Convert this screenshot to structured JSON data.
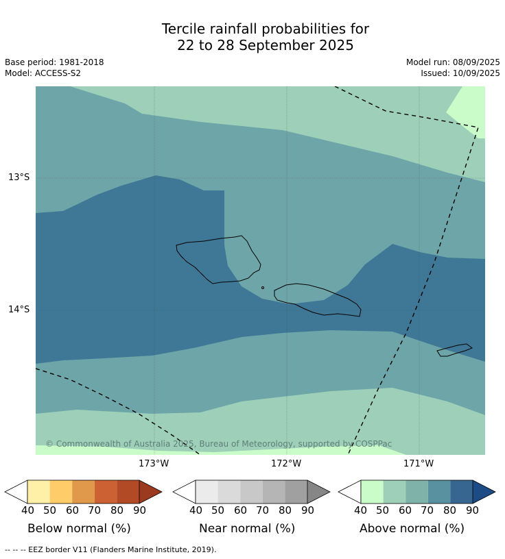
{
  "title_line1": "Tercile rainfall probabilities for",
  "title_line2": "22 to 28 September 2025",
  "base_period": "Base period: 1981-2018",
  "model": "Model: ACCESS-S2",
  "model_run": "Model run: 08/09/2025",
  "issued": "Issued: 10/09/2025",
  "lat_labels": [
    "13°S",
    "14°S"
  ],
  "lon_labels": [
    "173°W",
    "172°W",
    "171°W"
  ],
  "copyright": "© Commonwealth of Australia 2025, Bureau of Meteorology, supported by COSPPac",
  "colorbars": {
    "below": {
      "label": "Below normal (%)",
      "ticks": [
        "40",
        "50",
        "60",
        "70",
        "80",
        "90"
      ],
      "colors": [
        "#fff0a8",
        "#fecd69",
        "#e0994a",
        "#cc6233",
        "#b34a26",
        "#9b3a1f"
      ]
    },
    "near": {
      "label": "Near normal (%)",
      "ticks": [
        "40",
        "50",
        "60",
        "70",
        "80",
        "90"
      ],
      "colors": [
        "#ebebeb",
        "#dadada",
        "#c8c8c8",
        "#b5b5b5",
        "#a0a0a0",
        "#868686"
      ]
    },
    "above": {
      "label": "Above normal (%)",
      "ticks": [
        "40",
        "50",
        "60",
        "70",
        "80",
        "90"
      ],
      "colors": [
        "#c9fcc9",
        "#9dcfb9",
        "#7fb3aa",
        "#5a91a1",
        "#376691",
        "#1c4b86"
      ]
    }
  },
  "map_colors": {
    "above_40": "#c9fcc9",
    "above_50": "#9dcfb9",
    "above_60": "#6ea5a8",
    "above_70": "#3f7896"
  },
  "footer": "--  --  -- EEZ border V11 (Flanders Marine Institute, 2019)."
}
